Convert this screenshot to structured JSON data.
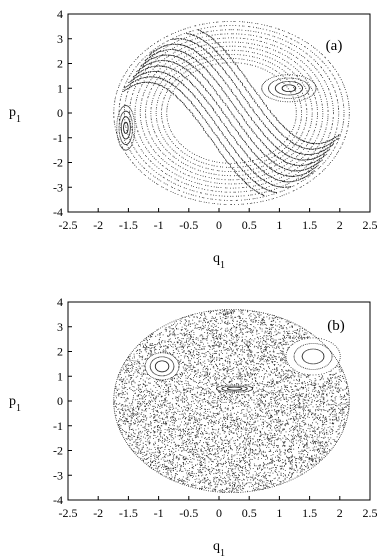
{
  "chart_data": [
    {
      "type": "scatter",
      "panel_label": "(a)",
      "xlabel": "q1",
      "ylabel": "p1",
      "xlim": [
        -2.5,
        2.5
      ],
      "ylim": [
        -4,
        4
      ],
      "xticks": [
        "-2.5",
        "-2",
        "-1.5",
        "-1",
        "-0.5",
        "0",
        "0.5",
        "1",
        "1.5",
        "2",
        "2.5"
      ],
      "yticks": [
        "4",
        "3",
        "2",
        "1",
        "0",
        "-1",
        "-2",
        "-3",
        "-4"
      ],
      "xtick_values": [
        -2.5,
        -2,
        -1.5,
        -1,
        -0.5,
        0,
        0.5,
        1,
        1.5,
        2,
        2.5
      ],
      "ytick_values": [
        4,
        3,
        2,
        1,
        0,
        -1,
        -2,
        -3,
        -4
      ],
      "grid": false,
      "boundary": {
        "center": [
          0.2,
          0
        ],
        "semi_axis_q": 1.95,
        "semi_axis_p": 3.7
      },
      "structure": "regular",
      "islands": [
        {
          "center": [
            1.15,
            1.0
          ],
          "semi_axes": [
            0.45,
            0.55
          ]
        },
        {
          "center": [
            -1.55,
            -0.6
          ],
          "semi_axes": [
            0.15,
            0.9
          ]
        }
      ]
    },
    {
      "type": "scatter",
      "panel_label": "(b)",
      "xlabel": "q1",
      "ylabel": "p1",
      "xlim": [
        -2.5,
        2.5
      ],
      "ylim": [
        -4,
        4
      ],
      "xticks": [
        "-2.5",
        "-2",
        "-1.5",
        "-1",
        "-0.5",
        "0",
        "0.5",
        "1",
        "1.5",
        "2",
        "2.5"
      ],
      "yticks": [
        "4",
        "3",
        "2",
        "1",
        "0",
        "-1",
        "-2",
        "-3",
        "-4"
      ],
      "xtick_values": [
        -2.5,
        -2,
        -1.5,
        -1,
        -0.5,
        0,
        0.5,
        1,
        1.5,
        2,
        2.5
      ],
      "ytick_values": [
        4,
        3,
        2,
        1,
        0,
        -1,
        -2,
        -3,
        -4
      ],
      "grid": false,
      "boundary": {
        "center": [
          0.2,
          0
        ],
        "semi_axis_q": 1.95,
        "semi_axis_p": 3.7
      },
      "structure": "chaotic",
      "islands": [
        {
          "center": [
            -0.95,
            1.4
          ],
          "semi_axes": [
            0.28,
            0.55
          ]
        },
        {
          "center": [
            0.25,
            0.5
          ],
          "semi_axes": [
            0.3,
            0.15
          ]
        },
        {
          "center": [
            1.55,
            1.8
          ],
          "semi_axes": [
            0.45,
            0.75
          ]
        }
      ]
    }
  ]
}
